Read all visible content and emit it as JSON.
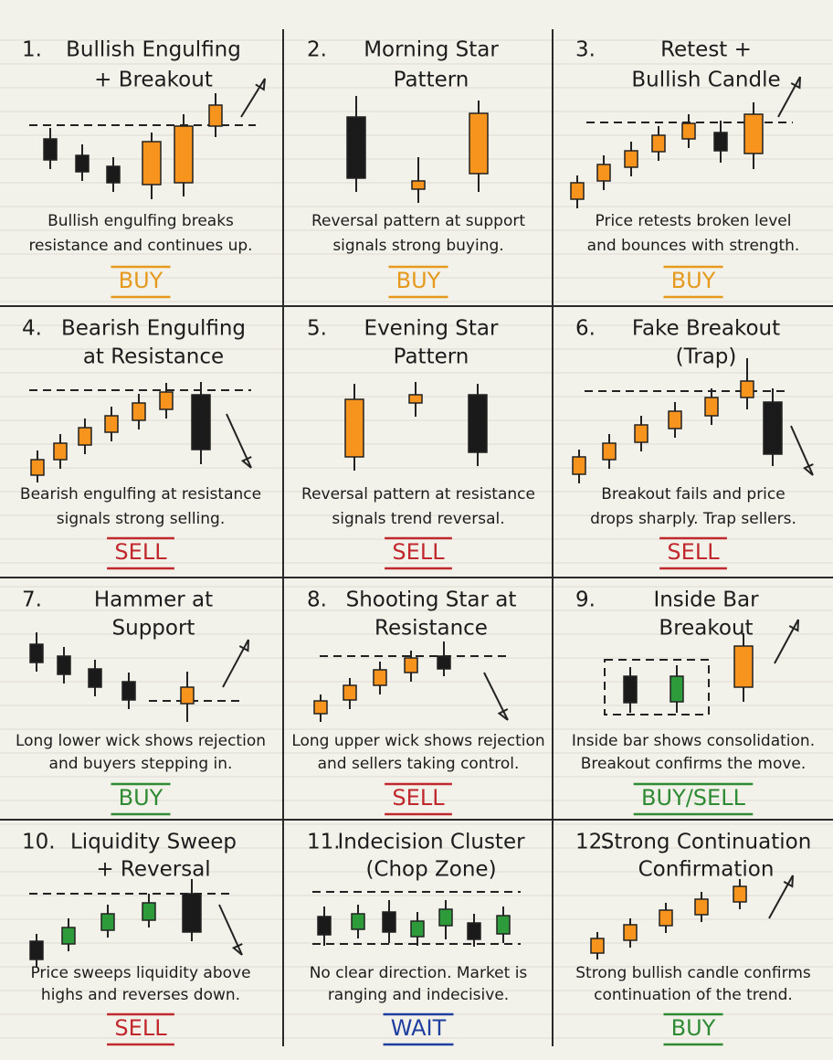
{
  "cells": [
    {
      "number": "1.",
      "title": [
        "Bullish Engulfing",
        "+ Breakout"
      ],
      "description": [
        "Bullish engulfing breaks",
        "resistance and continues up."
      ],
      "signal": "BUY",
      "signal_color": "#e59a1e"
    },
    {
      "number": "2.",
      "title": [
        "Morning Star",
        "Pattern"
      ],
      "description": [
        "Reversal pattern at support",
        "signals strong buying."
      ],
      "signal": "BUY",
      "signal_color": "#e59a1e"
    },
    {
      "number": "3.",
      "title": [
        "Retest +",
        "Bullish Candle"
      ],
      "description": [
        "Price retests broken level",
        "and bounces with strength."
      ],
      "signal": "BUY",
      "signal_color": "#e59a1e"
    },
    {
      "number": "4.",
      "title": [
        "Bearish Engulfing",
        "at Resistance"
      ],
      "description": [
        "Bearish engulfing at resistance",
        "signals strong selling."
      ],
      "signal": "SELL",
      "signal_color": "#c0282d"
    },
    {
      "number": "5.",
      "title": [
        "Evening Star",
        "Pattern"
      ],
      "description": [
        "Reversal pattern at resistance",
        "signals trend reversal."
      ],
      "signal": "SELL",
      "signal_color": "#c0282d"
    },
    {
      "number": "6.",
      "title": [
        "Fake Breakout",
        "(Trap)"
      ],
      "description": [
        "Breakout fails and price",
        "drops sharply. Trap sellers."
      ],
      "signal": "SELL",
      "signal_color": "#c0282d"
    },
    {
      "number": "7.",
      "title": [
        "Hammer at",
        "Support"
      ],
      "description": [
        "Long lower wick shows rejection",
        "and buyers stepping in."
      ],
      "signal": "BUY",
      "signal_color": "#2e8b34"
    },
    {
      "number": "8.",
      "title": [
        "Shooting Star at",
        "Resistance"
      ],
      "description": [
        "Long upper wick shows rejection",
        "and sellers taking control."
      ],
      "signal": "SELL",
      "signal_color": "#c0282d"
    },
    {
      "number": "9.",
      "title": [
        "Inside Bar",
        "Breakout"
      ],
      "description": [
        "Inside bar shows consolidation.",
        "Breakout confirms the move."
      ],
      "signal": "BUY/SELL",
      "signal_color": "#2e8b34"
    },
    {
      "number": "10.",
      "title": [
        "Liquidity Sweep",
        "+ Reversal"
      ],
      "description": [
        "Price sweeps liquidity above",
        "highs and reverses down."
      ],
      "signal": "SELL",
      "signal_color": "#c0282d"
    },
    {
      "number": "11.",
      "title": [
        "Indecision Cluster",
        "(Chop Zone)"
      ],
      "description": [
        "No clear direction. Market is",
        "ranging and indecisive."
      ],
      "signal": "WAIT",
      "signal_color": "#1f3fa0"
    },
    {
      "number": "12.",
      "title": [
        "Strong Continuation",
        "Confirmation"
      ],
      "description": [
        "Strong bullish candle confirms",
        "continuation of the trend."
      ],
      "signal": "BUY",
      "signal_color": "#2e8b34"
    }
  ]
}
